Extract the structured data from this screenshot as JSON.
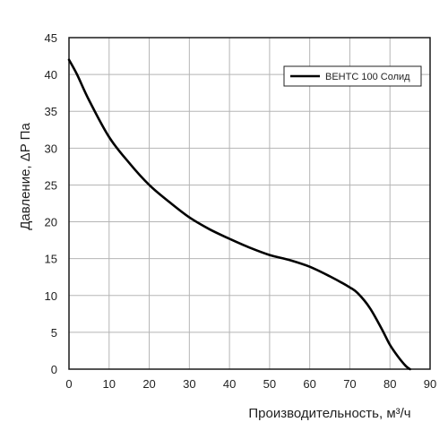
{
  "chart_data": {
    "type": "line",
    "title": "",
    "xlabel": "Производительность, м³/ч",
    "ylabel": "Давление, ΔP Па",
    "xlim": [
      0,
      90
    ],
    "ylim": [
      0,
      45
    ],
    "x_ticks": [
      0,
      10,
      20,
      30,
      40,
      50,
      60,
      70,
      80,
      90
    ],
    "y_ticks": [
      0,
      5,
      10,
      15,
      20,
      25,
      30,
      35,
      40,
      45
    ],
    "grid": true,
    "legend_position": "top-right",
    "series": [
      {
        "name": "ВЕНТС 100 Солид",
        "color": "#000000",
        "x": [
          0,
          2,
          5,
          10,
          15,
          20,
          25,
          30,
          35,
          40,
          45,
          50,
          55,
          60,
          65,
          70,
          72,
          75,
          78,
          80,
          82,
          84,
          85
        ],
        "y": [
          42,
          40,
          36.5,
          31.5,
          28,
          25,
          22.7,
          20.6,
          19,
          17.7,
          16.5,
          15.5,
          14.8,
          13.9,
          12.6,
          11.1,
          10.3,
          8.3,
          5.4,
          3.3,
          1.7,
          0.4,
          0
        ]
      }
    ]
  }
}
